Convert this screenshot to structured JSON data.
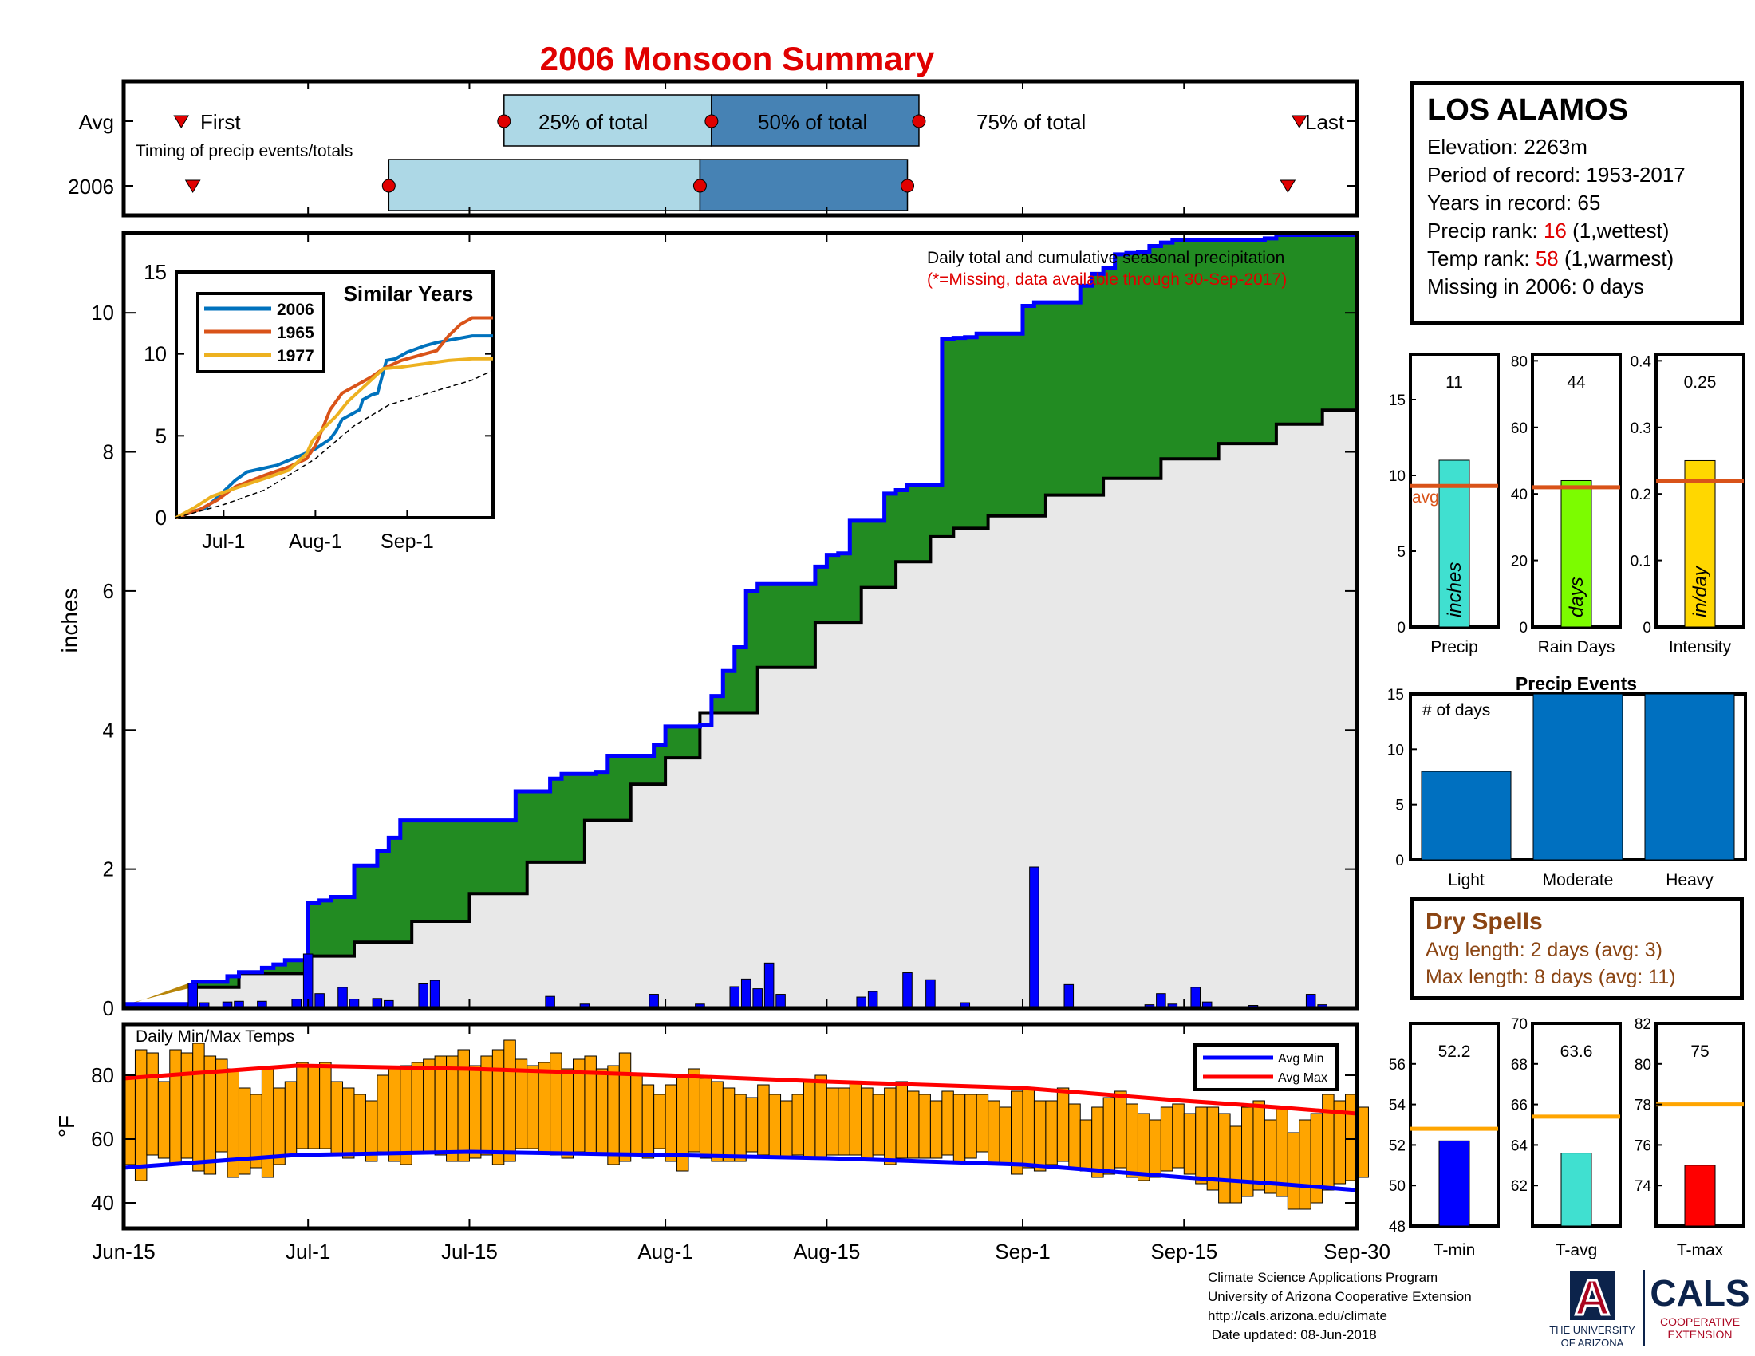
{
  "title": "2006 Monsoon Summary",
  "timing": {
    "row_labels": [
      "Avg",
      "2006"
    ],
    "first_label": "First",
    "last_label": "Last",
    "subtitle": "Timing of precip events/totals",
    "q25_label": "25% of total",
    "q50_label": "50% of total",
    "q75_label": "75% of total",
    "avg": {
      "first": "Jun-20",
      "q25": "Jul-18",
      "q50": "Aug-5",
      "q75": "Aug-23",
      "last": "Sep-25"
    },
    "year": {
      "first": "Jun-21",
      "q25": "Jul-8",
      "q50": "Aug-4",
      "q75": "Aug-22",
      "last": "Sep-24"
    },
    "colors": {
      "light": "#add8e6",
      "dark": "#4682b4",
      "marker": "#e00000"
    }
  },
  "station": {
    "name": "LOS ALAMOS",
    "elevation_label": "Elevation: 2263m",
    "period_label": "Period of record: 1953-2017",
    "years_label": "Years in record: 65",
    "precip_rank_prefix": "Precip rank: ",
    "precip_rank": "16",
    "precip_rank_suffix": " (1,wettest)",
    "temp_rank_prefix": "Temp rank: ",
    "temp_rank": "58",
    "temp_rank_suffix": " (1,warmest)",
    "missing_label": "Missing in 2006: 0 days"
  },
  "dry_spells": {
    "title": "Dry Spells",
    "avg_line": "Avg length: 2 days (avg: 3)",
    "max_line": "Max length: 8 days (avg: 11)"
  },
  "footer": {
    "lines": [
      "Climate Science Applications Program",
      "University of Arizona Cooperative Extension",
      "http://cals.arizona.edu/climate",
      " Date updated: 08-Jun-2018"
    ]
  },
  "logos": {
    "ua_letter": "A",
    "ua_line1": "THE UNIVERSITY",
    "ua_line2": "OF ARIZONA",
    "cals": "CALS",
    "cals_line1": "COOPERATIVE",
    "cals_line2": "EXTENSION"
  },
  "chart_data": [
    {
      "id": "main-precip",
      "type": "area",
      "annotation_1": "Daily total and cumulative seasonal precipitation",
      "annotation_2": "(*=Missing, data available through 30-Sep-2017)",
      "ylabel": "inches",
      "ylim": [
        0,
        11
      ],
      "yticks": [
        0,
        2,
        4,
        6,
        8,
        10
      ],
      "x_ticks": [
        "Jun-15",
        "Jul-1",
        "Jul-15",
        "Aug-1",
        "Aug-15",
        "Sep-1",
        "Sep-15",
        "Sep-30"
      ],
      "x_tick_days": [
        0,
        16,
        30,
        47,
        61,
        78,
        92,
        107
      ],
      "series": [
        {
          "name": "cumulative_2006",
          "color": "#0000ff",
          "days": [
            0,
            6,
            9,
            10,
            12,
            13,
            14,
            16,
            17,
            18,
            20,
            22,
            23,
            24,
            34,
            37,
            38,
            41,
            42,
            46,
            47,
            50,
            51,
            52,
            53,
            54,
            55,
            60,
            61,
            62,
            63,
            66,
            67,
            68,
            71,
            72,
            73,
            74,
            78,
            79,
            83,
            84,
            85,
            86,
            87,
            88,
            89,
            90,
            91,
            92,
            99,
            100,
            107
          ],
          "values": [
            0.06,
            0.38,
            0.46,
            0.52,
            0.58,
            0.63,
            0.69,
            1.52,
            1.55,
            1.6,
            2.05,
            2.26,
            2.45,
            2.7,
            3.12,
            3.3,
            3.37,
            3.4,
            3.63,
            3.79,
            4.05,
            4.07,
            4.49,
            4.85,
            5.19,
            6.0,
            6.1,
            6.35,
            6.52,
            6.54,
            7.01,
            7.4,
            7.45,
            7.53,
            9.62,
            9.64,
            9.65,
            9.7,
            10.1,
            10.15,
            10.39,
            10.56,
            10.64,
            10.84,
            10.86,
            10.88,
            10.96,
            11.01,
            11.04,
            11.05,
            11.07,
            11.12,
            11.12
          ]
        },
        {
          "name": "cumulative_avg",
          "color": "#000000",
          "days": [
            0,
            6,
            10,
            16,
            20,
            25,
            30,
            35,
            40,
            44,
            47,
            50,
            55,
            60,
            64,
            67,
            70,
            72,
            75,
            80,
            85,
            90,
            95,
            100,
            104,
            107
          ],
          "values": [
            0.05,
            0.3,
            0.5,
            0.75,
            0.95,
            1.25,
            1.65,
            2.1,
            2.7,
            3.22,
            3.6,
            4.25,
            4.9,
            5.55,
            6.05,
            6.42,
            6.78,
            6.9,
            7.08,
            7.38,
            7.62,
            7.9,
            8.12,
            8.4,
            8.6,
            9.0
          ]
        }
      ],
      "daily_bars": {
        "color": "#0000ff",
        "days": [
          6,
          7,
          9,
          10,
          12,
          15,
          16,
          17,
          19,
          20,
          22,
          23,
          26,
          27,
          37,
          40,
          46,
          50,
          53,
          54,
          55,
          56,
          57,
          64,
          65,
          68,
          70,
          73,
          79,
          82,
          89,
          90,
          91,
          93,
          94,
          98,
          103,
          104
        ],
        "values": [
          0.36,
          0.08,
          0.09,
          0.1,
          0.1,
          0.13,
          0.78,
          0.21,
          0.3,
          0.13,
          0.14,
          0.11,
          0.35,
          0.4,
          0.17,
          0.06,
          0.2,
          0.06,
          0.31,
          0.42,
          0.28,
          0.65,
          0.2,
          0.16,
          0.24,
          0.51,
          0.41,
          0.08,
          2.03,
          0.34,
          0.05,
          0.21,
          0.06,
          0.3,
          0.09,
          0.04,
          0.2,
          0.05
        ]
      }
    },
    {
      "id": "similar-years",
      "type": "line",
      "title": "Similar Years",
      "ylim": [
        0,
        15
      ],
      "yticks": [
        0,
        5,
        10,
        15
      ],
      "x_ticks": [
        "Jul-1",
        "Aug-1",
        "Sep-1"
      ],
      "x_tick_days": [
        16,
        47,
        78
      ],
      "series": [
        {
          "name": "2006",
          "color": "#0072bd",
          "days": [
            0,
            6,
            10,
            16,
            20,
            24,
            34,
            38,
            42,
            47,
            52,
            54,
            56,
            60,
            62,
            63,
            66,
            68,
            71,
            74,
            78,
            84,
            88,
            100,
            107
          ],
          "values": [
            0,
            0.4,
            0.6,
            1.6,
            2.3,
            2.8,
            3.2,
            3.5,
            3.8,
            4.2,
            4.8,
            5.3,
            6.0,
            6.4,
            6.6,
            7.2,
            7.5,
            7.6,
            9.6,
            9.7,
            10.1,
            10.5,
            10.7,
            11.1,
            11.1
          ]
        },
        {
          "name": "1965",
          "color": "#d95319",
          "days": [
            0,
            8,
            14,
            20,
            30,
            38,
            44,
            47,
            48,
            52,
            56,
            60,
            66,
            70,
            76,
            82,
            88,
            92,
            96,
            100,
            107
          ],
          "values": [
            0,
            0.5,
            1.1,
            1.9,
            2.6,
            3.1,
            3.6,
            4.4,
            4.8,
            6.6,
            7.6,
            8.0,
            8.6,
            9.1,
            9.6,
            9.9,
            10.2,
            11.1,
            11.8,
            12.2,
            12.2
          ]
        },
        {
          "name": "1977",
          "color": "#edb120",
          "days": [
            0,
            6,
            12,
            20,
            30,
            38,
            44,
            46,
            50,
            54,
            58,
            64,
            70,
            76,
            84,
            92,
            100,
            107
          ],
          "values": [
            0,
            0.6,
            1.3,
            1.8,
            2.4,
            2.9,
            3.9,
            4.7,
            5.5,
            6.2,
            7.1,
            8.1,
            9.1,
            9.2,
            9.4,
            9.6,
            9.7,
            9.7
          ]
        },
        {
          "name": "avg",
          "color": "#000000",
          "days": [
            0,
            16,
            30,
            47,
            60,
            72,
            85,
            100,
            107
          ],
          "values": [
            0,
            0.8,
            1.7,
            3.6,
            5.6,
            6.9,
            7.6,
            8.4,
            9.0
          ]
        }
      ]
    },
    {
      "id": "temps",
      "type": "bar",
      "title": "Daily Min/Max Temps",
      "ylabel": "°F",
      "ylim": [
        32,
        96
      ],
      "yticks": [
        40,
        60,
        80
      ],
      "bar_color": "#ffa500",
      "series": [
        {
          "name": "Avg Min",
          "color": "#0000ff",
          "days": [
            0,
            15,
            30,
            47,
            61,
            78,
            92,
            100,
            107
          ],
          "values": [
            51,
            55,
            56,
            55,
            54,
            52,
            48,
            46,
            44
          ]
        },
        {
          "name": "Avg Max",
          "color": "#ff0000",
          "days": [
            0,
            15,
            30,
            47,
            61,
            78,
            92,
            100,
            107
          ],
          "values": [
            79,
            83,
            82,
            80,
            78,
            76,
            72,
            70,
            68
          ]
        }
      ],
      "daily_min": [
        52,
        47,
        55,
        54,
        52,
        54,
        50,
        49,
        56,
        48,
        49,
        51,
        48,
        52,
        55,
        57,
        57,
        57,
        55,
        54,
        55,
        53,
        56,
        53,
        52,
        56,
        56,
        55,
        53,
        53,
        54,
        55,
        52,
        53,
        57,
        57,
        56,
        55,
        54,
        56,
        55,
        55,
        52,
        53,
        55,
        54,
        57,
        53,
        50,
        56,
        54,
        53,
        53,
        53,
        56,
        55,
        54,
        54,
        55,
        54,
        54,
        55,
        55,
        55,
        54,
        55,
        52,
        54,
        54,
        54,
        54,
        55,
        53,
        54,
        56,
        52,
        52,
        49,
        51,
        50,
        52,
        53,
        51,
        50,
        48,
        49,
        51,
        48,
        47,
        48,
        50,
        51,
        49,
        46,
        44,
        40,
        40,
        42,
        44,
        43,
        42,
        38,
        38,
        40,
        44,
        46,
        47,
        48
      ],
      "daily_max": [
        80,
        88,
        87,
        78,
        88,
        87,
        90,
        86,
        85,
        82,
        76,
        74,
        82,
        76,
        78,
        84,
        83,
        84,
        78,
        76,
        74,
        72,
        80,
        82,
        83,
        84,
        85,
        86,
        86,
        88,
        83,
        86,
        88,
        91,
        85,
        83,
        84,
        87,
        82,
        85,
        86,
        82,
        83,
        87,
        80,
        77,
        74,
        77,
        80,
        82,
        79,
        78,
        76,
        74,
        73,
        77,
        74,
        72,
        74,
        78,
        80,
        76,
        76,
        78,
        76,
        74,
        76,
        78,
        75,
        74,
        72,
        75,
        74,
        74,
        74,
        72,
        70,
        75,
        76,
        72,
        72,
        76,
        71,
        66,
        70,
        73,
        75,
        71,
        68,
        66,
        70,
        71,
        68,
        70,
        70,
        68,
        64,
        70,
        72,
        66,
        70,
        62,
        66,
        68,
        74,
        72,
        74,
        70
      ]
    },
    {
      "id": "precip-stats",
      "type": "bar",
      "panels": [
        {
          "label": "Precip",
          "unit": "inches",
          "value": 11,
          "value_label": "11",
          "avg": 9.3,
          "ylim": [
            0,
            18
          ],
          "yticks": [
            0,
            5,
            10,
            15
          ],
          "color": "#40e0d0"
        },
        {
          "label": "Rain Days",
          "unit": "days",
          "value": 44,
          "value_label": "44",
          "avg": 42,
          "ylim": [
            0,
            82
          ],
          "yticks": [
            0,
            20,
            40,
            60,
            80
          ],
          "color": "#7cfc00"
        },
        {
          "label": "Intensity",
          "unit": "in/day",
          "value": 0.25,
          "value_label": "0.25",
          "avg": 0.22,
          "ylim": [
            0,
            0.41
          ],
          "yticks": [
            0,
            0.1,
            0.2,
            0.3,
            0.4
          ],
          "color": "#ffd700"
        }
      ],
      "avg_label": "avg",
      "avg_color": "#d95319"
    },
    {
      "id": "precip-events",
      "type": "bar",
      "title": "Precip Events",
      "ylabel_inset": "# of days",
      "categories": [
        "Light",
        "Moderate",
        "Heavy"
      ],
      "values": [
        8,
        15,
        15
      ],
      "ylim": [
        0,
        15
      ],
      "yticks": [
        0,
        5,
        10,
        15
      ],
      "color": "#0070c0"
    },
    {
      "id": "temp-stats",
      "type": "bar",
      "panels": [
        {
          "label": "T-min",
          "value": 52.2,
          "value_label": "52.2",
          "avg": 52.8,
          "ylim": [
            48,
            58
          ],
          "yticks": [
            48,
            50,
            52,
            54,
            56
          ],
          "color": "#0000ff"
        },
        {
          "label": "T-avg",
          "value": 63.6,
          "value_label": "63.6",
          "avg": 65.4,
          "ylim": [
            60,
            70
          ],
          "yticks": [
            62,
            64,
            66,
            68,
            70
          ],
          "color": "#40e0d0"
        },
        {
          "label": "T-max",
          "value": 75,
          "value_label": "75",
          "avg": 78,
          "ylim": [
            72,
            82
          ],
          "yticks": [
            74,
            76,
            78,
            80,
            82
          ],
          "color": "#ff0000"
        }
      ],
      "avg_color": "#ffa500"
    }
  ]
}
